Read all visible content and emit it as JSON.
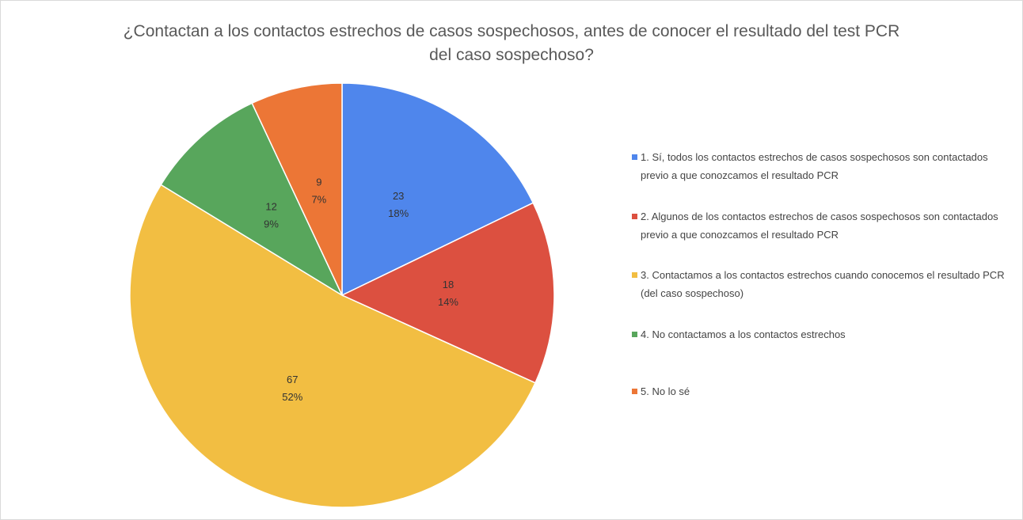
{
  "chart_data": {
    "type": "pie",
    "title": "¿Contactan a los contactos estrechos de casos sospechosos, antes de conocer el resultado del test PCR del caso sospechoso?",
    "categories": [
      "1. Sí, todos los contactos estrechos de casos sospechosos son contactados previo a que conozcamos el resultado PCR",
      "2. Algunos de los contactos estrechos de casos sospechosos son contactados previo a que conozcamos el resultado PCR",
      "3. Contactamos a los contactos estrechos cuando conocemos el resultado PCR (del caso sospechoso)",
      "4. No contactamos a los contactos estrechos",
      "5. No lo sé"
    ],
    "values": [
      23,
      18,
      67,
      12,
      9
    ],
    "percentages": [
      18,
      14,
      52,
      9,
      7
    ],
    "percentage_labels": [
      "18%",
      "14%",
      "52%",
      "9%",
      "7%"
    ],
    "colors": [
      "#4f86ec",
      "#dc5040",
      "#f2be42",
      "#58a65c",
      "#ec7636"
    ],
    "legend": "right"
  }
}
